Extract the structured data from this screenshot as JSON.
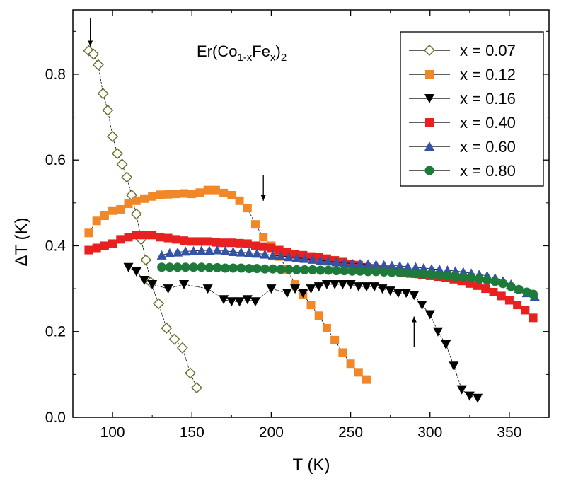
{
  "chart_data": {
    "type": "scatter",
    "title": "Er(Co1-xFex)2",
    "title_parts": {
      "base": "Er(Co",
      "sub1": "1-x",
      "mid": "Fe",
      "sub2": "x",
      "tail": ")",
      "sub3": "2"
    },
    "xlabel": "T (K)",
    "ylabel": "ΔT (K)",
    "xlim": [
      75,
      375
    ],
    "ylim": [
      0.0,
      0.95
    ],
    "xticks": [
      100,
      150,
      200,
      250,
      300,
      350
    ],
    "yticks": [
      0.0,
      0.2,
      0.4,
      0.6,
      0.8
    ],
    "xtick_labels": [
      "100",
      "150",
      "200",
      "250",
      "300",
      "350"
    ],
    "ytick_labels": [
      "0.0",
      "0.2",
      "0.4",
      "0.6",
      "0.8"
    ],
    "grid": false,
    "legend_position": "top-right",
    "series": [
      {
        "name": "x = 0.07",
        "marker": "diamond-open",
        "color": "#6b6b2a",
        "x": [
          85,
          88,
          91,
          94,
          97,
          100,
          103,
          106,
          109,
          112,
          115,
          118,
          121,
          124,
          129,
          134,
          139,
          144,
          149,
          153
        ],
        "y": [
          0.855,
          0.847,
          0.822,
          0.755,
          0.716,
          0.655,
          0.615,
          0.59,
          0.56,
          0.518,
          0.474,
          0.415,
          0.367,
          0.315,
          0.265,
          0.208,
          0.182,
          0.162,
          0.103,
          0.069
        ]
      },
      {
        "name": "x = 0.12",
        "marker": "square",
        "color": "#f0882a",
        "x": [
          85,
          90,
          95,
          100,
          105,
          110,
          115,
          120,
          125,
          130,
          135,
          140,
          145,
          150,
          155,
          160,
          165,
          170,
          175,
          180,
          185,
          190,
          195,
          200,
          205,
          210,
          215,
          220,
          225,
          230,
          235,
          240,
          245,
          250,
          255,
          260
        ],
        "y": [
          0.43,
          0.458,
          0.47,
          0.482,
          0.485,
          0.498,
          0.505,
          0.51,
          0.515,
          0.519,
          0.52,
          0.521,
          0.522,
          0.521,
          0.524,
          0.53,
          0.53,
          0.523,
          0.518,
          0.505,
          0.488,
          0.45,
          0.42,
          0.4,
          0.375,
          0.345,
          0.31,
          0.287,
          0.262,
          0.237,
          0.208,
          0.18,
          0.151,
          0.125,
          0.105,
          0.088
        ]
      },
      {
        "name": "x = 0.16",
        "marker": "triangle-down",
        "color": "#000000",
        "x": [
          110,
          115,
          120,
          125,
          135,
          145,
          160,
          170,
          175,
          180,
          185,
          190,
          200,
          210,
          215,
          220,
          225,
          230,
          235,
          240,
          245,
          250,
          255,
          260,
          265,
          270,
          275,
          280,
          285,
          290,
          295,
          300,
          305,
          310,
          315,
          320,
          325,
          330
        ],
        "y": [
          0.35,
          0.34,
          0.32,
          0.31,
          0.3,
          0.31,
          0.3,
          0.275,
          0.27,
          0.27,
          0.275,
          0.27,
          0.3,
          0.29,
          0.3,
          0.29,
          0.3,
          0.305,
          0.31,
          0.31,
          0.31,
          0.31,
          0.305,
          0.305,
          0.305,
          0.3,
          0.295,
          0.29,
          0.29,
          0.285,
          0.262,
          0.24,
          0.2,
          0.17,
          0.12,
          0.065,
          0.05,
          0.045
        ]
      },
      {
        "name": "x = 0.40",
        "marker": "square",
        "color": "#e82020",
        "x": [
          85,
          90,
          95,
          100,
          105,
          110,
          115,
          120,
          125,
          130,
          135,
          140,
          145,
          150,
          155,
          160,
          165,
          170,
          175,
          180,
          185,
          190,
          195,
          200,
          205,
          210,
          215,
          220,
          225,
          230,
          235,
          240,
          245,
          250,
          255,
          260,
          265,
          270,
          275,
          280,
          285,
          290,
          295,
          300,
          305,
          310,
          315,
          320,
          325,
          330,
          335,
          340,
          345,
          350,
          355,
          360,
          365
        ],
        "y": [
          0.39,
          0.395,
          0.4,
          0.405,
          0.415,
          0.42,
          0.425,
          0.425,
          0.425,
          0.42,
          0.418,
          0.415,
          0.412,
          0.41,
          0.41,
          0.41,
          0.408,
          0.407,
          0.407,
          0.406,
          0.405,
          0.4,
          0.398,
          0.395,
          0.39,
          0.385,
          0.38,
          0.378,
          0.375,
          0.373,
          0.37,
          0.366,
          0.362,
          0.358,
          0.355,
          0.35,
          0.347,
          0.345,
          0.343,
          0.341,
          0.338,
          0.335,
          0.332,
          0.33,
          0.328,
          0.325,
          0.322,
          0.318,
          0.312,
          0.307,
          0.3,
          0.292,
          0.283,
          0.273,
          0.262,
          0.25,
          0.232
        ]
      },
      {
        "name": "x = 0.60",
        "marker": "triangle-up",
        "color": "#3353a8",
        "x": [
          131,
          136,
          141,
          146,
          151,
          156,
          161,
          166,
          171,
          176,
          181,
          186,
          191,
          196,
          201,
          206,
          211,
          216,
          221,
          226,
          231,
          236,
          241,
          246,
          251,
          256,
          261,
          266,
          271,
          276,
          281,
          286,
          291,
          296,
          301,
          306,
          311,
          316,
          321,
          326,
          331,
          336,
          341,
          346,
          351,
          356,
          361,
          366
        ],
        "y": [
          0.378,
          0.383,
          0.385,
          0.387,
          0.388,
          0.389,
          0.389,
          0.39,
          0.388,
          0.386,
          0.385,
          0.384,
          0.382,
          0.38,
          0.378,
          0.376,
          0.374,
          0.372,
          0.37,
          0.368,
          0.366,
          0.364,
          0.362,
          0.36,
          0.359,
          0.358,
          0.357,
          0.356,
          0.355,
          0.354,
          0.353,
          0.351,
          0.35,
          0.348,
          0.346,
          0.345,
          0.343,
          0.341,
          0.339,
          0.336,
          0.333,
          0.33,
          0.325,
          0.318,
          0.31,
          0.3,
          0.29,
          0.282
        ]
      },
      {
        "name": "x = 0.80",
        "marker": "circle",
        "color": "#1e7a3a",
        "x": [
          131,
          136,
          141,
          146,
          151,
          156,
          161,
          166,
          171,
          176,
          181,
          186,
          191,
          196,
          201,
          206,
          211,
          216,
          221,
          226,
          231,
          236,
          241,
          246,
          251,
          256,
          261,
          266,
          271,
          276,
          281,
          286,
          291,
          296,
          301,
          306,
          311,
          316,
          321,
          326,
          331,
          336,
          341,
          346,
          351,
          356,
          361,
          365
        ],
        "y": [
          0.35,
          0.35,
          0.35,
          0.35,
          0.35,
          0.35,
          0.349,
          0.349,
          0.348,
          0.348,
          0.348,
          0.347,
          0.347,
          0.346,
          0.346,
          0.345,
          0.345,
          0.344,
          0.344,
          0.344,
          0.343,
          0.343,
          0.342,
          0.342,
          0.341,
          0.341,
          0.34,
          0.34,
          0.339,
          0.338,
          0.337,
          0.336,
          0.335,
          0.334,
          0.333,
          0.331,
          0.33,
          0.328,
          0.326,
          0.325,
          0.323,
          0.32,
          0.317,
          0.312,
          0.305,
          0.298,
          0.292,
          0.287
        ]
      }
    ],
    "annotations": [
      {
        "type": "arrow-down",
        "x": 86,
        "y_from": 0.93,
        "y_to": 0.865
      },
      {
        "type": "arrow-down",
        "x": 195,
        "y_from": 0.565,
        "y_to": 0.505
      },
      {
        "type": "arrow-up",
        "x": 290,
        "y_from": 0.165,
        "y_to": 0.235
      }
    ]
  }
}
